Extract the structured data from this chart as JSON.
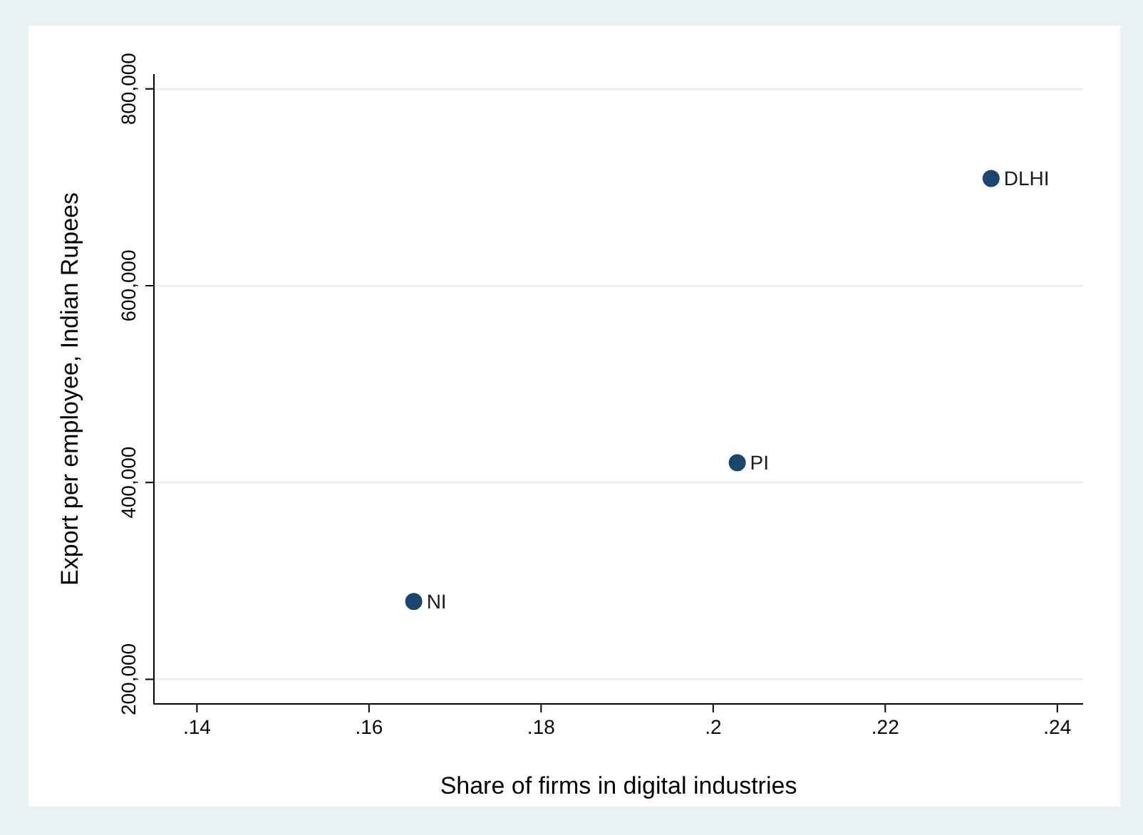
{
  "chart_data": {
    "type": "scatter",
    "xlabel": "Share of firms in digital industries",
    "ylabel": "Export per employee, Indian Rupees",
    "series": [
      {
        "name": "NI",
        "color": "#1a476f",
        "x": [
          0.1652
        ],
        "values": [
          279000
        ]
      },
      {
        "name": "PI",
        "color": "#1a476f",
        "x": [
          0.2028
        ],
        "values": [
          420000
        ]
      },
      {
        "name": "DLHI",
        "color": "#1a476f",
        "x": [
          0.2323
        ],
        "values": [
          709000
        ]
      }
    ],
    "xlim": [
      0.135,
      0.243
    ],
    "xticks": [
      {
        "value": 0.14,
        "label": ".14"
      },
      {
        "value": 0.16,
        "label": ".16"
      },
      {
        "value": 0.18,
        "label": ".18"
      },
      {
        "value": 0.2,
        "label": ".2"
      },
      {
        "value": 0.22,
        "label": ".22"
      },
      {
        "value": 0.24,
        "label": ".24"
      }
    ],
    "ylim": [
      175000,
      815000
    ],
    "yticks": [
      {
        "value": 200000,
        "label": "200,000"
      },
      {
        "value": 400000,
        "label": "400,000"
      },
      {
        "value": 600000,
        "label": "600,000"
      },
      {
        "value": 800000,
        "label": "800,000"
      }
    ],
    "grid": "y",
    "marker": "circle",
    "legend": false
  }
}
